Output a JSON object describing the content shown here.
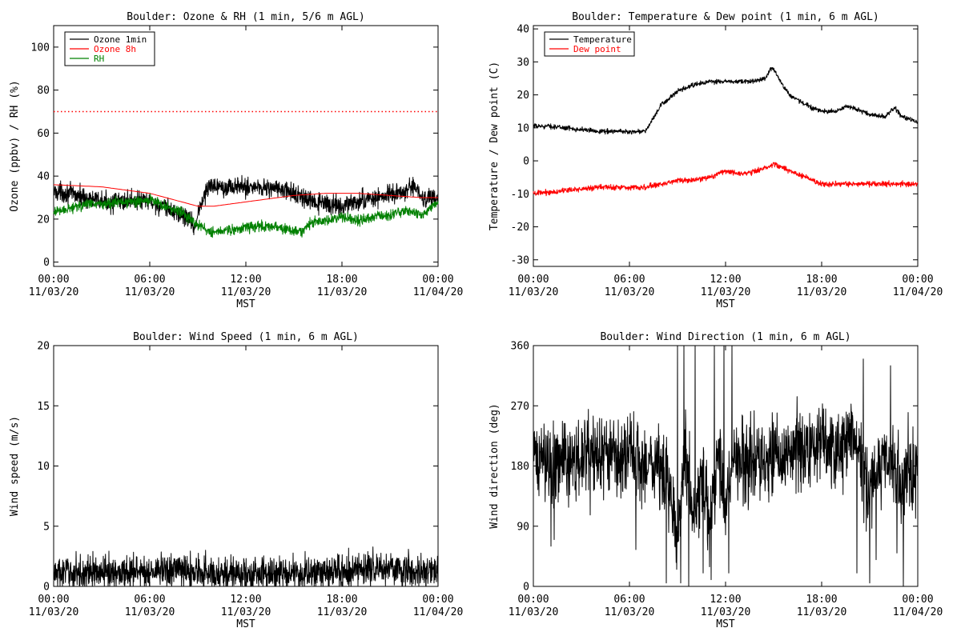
{
  "chart_data": [
    {
      "type": "line",
      "title": "Boulder: Ozone & RH (1 min, 5/6 m AGL)",
      "xlabel": "MST",
      "ylabel": "Ozone (ppbv) / RH (%)",
      "xticks": [
        {
          "time": "00:00",
          "date": "11/03/20"
        },
        {
          "time": "06:00",
          "date": "11/03/20"
        },
        {
          "time": "12:00",
          "date": "11/03/20"
        },
        {
          "time": "18:00",
          "date": "11/03/20"
        },
        {
          "time": "00:00",
          "date": "11/04/20"
        }
      ],
      "xlim": [
        0,
        24
      ],
      "ylim": [
        -2,
        110
      ],
      "yticks": [
        0,
        20,
        40,
        60,
        80,
        100
      ],
      "legend": {
        "placement": "top-left"
      },
      "reference_lines": [
        {
          "y": 70,
          "color": "#ff0000",
          "style": "dotted"
        }
      ],
      "series": [
        {
          "name": "Ozone 1min",
          "color": "#000000",
          "noise": 2.2,
          "x": [
            0,
            1,
            2,
            3,
            4,
            5,
            6,
            7,
            8,
            8.5,
            8.8,
            9,
            9.3,
            9.6,
            10,
            11,
            12,
            13,
            14,
            15,
            15.5,
            16,
            17,
            18,
            19,
            20,
            21,
            22,
            22.5,
            23,
            24
          ],
          "y": [
            33,
            32,
            30,
            28,
            28,
            29,
            28,
            25,
            22,
            20,
            16,
            22,
            29,
            34,
            36,
            35,
            35,
            35,
            34,
            32,
            30,
            28,
            27,
            26,
            28,
            30,
            31,
            33,
            35,
            30,
            29
          ]
        },
        {
          "name": "Ozone 8h",
          "color": "#ff0000",
          "noise": 0,
          "x": [
            0,
            3,
            6,
            8,
            9,
            10,
            12,
            15,
            17,
            19,
            21,
            23,
            24
          ],
          "y": [
            36,
            35,
            32,
            28,
            26,
            26,
            28,
            31,
            32,
            32,
            31,
            30,
            30
          ]
        },
        {
          "name": "RH",
          "color": "#008000",
          "noise": 1.2,
          "x": [
            0,
            1,
            2,
            3,
            4,
            5,
            6,
            7,
            8,
            8.5,
            9,
            9.5,
            10,
            11,
            12,
            13,
            14,
            15,
            15.5,
            16,
            17,
            18,
            19,
            20,
            21,
            22,
            23,
            24
          ],
          "y": [
            23,
            25,
            27,
            27,
            28,
            28,
            29,
            26,
            23,
            20,
            17,
            15,
            14,
            15,
            16,
            17,
            16,
            15,
            14,
            18,
            20,
            21,
            19,
            21,
            22,
            24,
            22,
            28
          ]
        }
      ]
    },
    {
      "type": "line",
      "title": "Boulder: Temperature & Dew point (1 min, 6 m AGL)",
      "xlabel": "MST",
      "ylabel": "Temperature / Dew point (C)",
      "xticks": [
        {
          "time": "00:00",
          "date": "11/03/20"
        },
        {
          "time": "06:00",
          "date": "11/03/20"
        },
        {
          "time": "12:00",
          "date": "11/03/20"
        },
        {
          "time": "18:00",
          "date": "11/03/20"
        },
        {
          "time": "00:00",
          "date": "11/04/20"
        }
      ],
      "xlim": [
        0,
        24
      ],
      "ylim": [
        -32,
        41
      ],
      "yticks": [
        -30,
        -20,
        -10,
        0,
        10,
        20,
        30,
        40
      ],
      "legend": {
        "placement": "top-left"
      },
      "series": [
        {
          "name": "Temperature",
          "color": "#000000",
          "noise": 0.35,
          "x": [
            0,
            1,
            2,
            3,
            4,
            5,
            6,
            7,
            7.5,
            8,
            9,
            10,
            11,
            12,
            13,
            13.5,
            14,
            14.5,
            14.8,
            15,
            15.3,
            16,
            17,
            18,
            19,
            19.5,
            20,
            21,
            22,
            22.3,
            22.6,
            23,
            23.5,
            24
          ],
          "y": [
            10.5,
            10.5,
            10,
            9.5,
            9,
            9,
            8.8,
            9,
            13,
            17,
            21,
            23,
            24,
            24,
            24,
            24,
            24.5,
            25,
            28,
            28,
            25,
            20,
            17,
            15,
            15,
            16.5,
            16,
            14,
            13.5,
            15,
            16,
            13.5,
            12.5,
            11.5
          ]
        },
        {
          "name": "Dew point",
          "color": "#ff0000",
          "noise": 0.4,
          "x": [
            0,
            1,
            2,
            3,
            4,
            5,
            6,
            7,
            8,
            9,
            10,
            11,
            12,
            13,
            14,
            15,
            16,
            17,
            18,
            19,
            20,
            21,
            22,
            23,
            24
          ],
          "y": [
            -10,
            -9.5,
            -9,
            -8.5,
            -8,
            -8,
            -8,
            -8,
            -7,
            -6,
            -6,
            -5,
            -3,
            -4,
            -3,
            -1,
            -3,
            -5,
            -7,
            -7,
            -7,
            -7,
            -7,
            -7,
            -7
          ]
        }
      ]
    },
    {
      "type": "line",
      "title": "Boulder: Wind Speed (1 min, 6 m AGL)",
      "xlabel": "MST",
      "ylabel": "Wind speed (m/s)",
      "xticks": [
        {
          "time": "00:00",
          "date": "11/03/20"
        },
        {
          "time": "06:00",
          "date": "11/03/20"
        },
        {
          "time": "12:00",
          "date": "11/03/20"
        },
        {
          "time": "18:00",
          "date": "11/03/20"
        },
        {
          "time": "00:00",
          "date": "11/04/20"
        }
      ],
      "xlim": [
        0,
        24
      ],
      "ylim": [
        0,
        20
      ],
      "yticks": [
        0,
        5,
        10,
        15,
        20
      ],
      "series": [
        {
          "color": "#000000",
          "noise": 0.7,
          "x": [
            0,
            2,
            4,
            6,
            8,
            10,
            12,
            14,
            16,
            18,
            20,
            21,
            22,
            24
          ],
          "y": [
            1.1,
            1.1,
            1.2,
            1.2,
            1.3,
            1.1,
            1,
            1,
            1.1,
            1.2,
            1.5,
            1.6,
            1.2,
            1.1
          ]
        }
      ]
    },
    {
      "type": "line",
      "title": "Boulder: Wind Direction (1 min, 6 m AGL)",
      "xlabel": "MST",
      "ylabel": "Wind direction (deg)",
      "xticks": [
        {
          "time": "00:00",
          "date": "11/03/20"
        },
        {
          "time": "06:00",
          "date": "11/03/20"
        },
        {
          "time": "12:00",
          "date": "11/03/20"
        },
        {
          "time": "18:00",
          "date": "11/03/20"
        },
        {
          "time": "00:00",
          "date": "11/04/20"
        }
      ],
      "xlim": [
        0,
        24
      ],
      "ylim": [
        0,
        360
      ],
      "yticks": [
        0,
        90,
        180,
        270,
        360
      ],
      "series": [
        {
          "color": "#000000",
          "noise": 30,
          "x": [
            0,
            2,
            4,
            6,
            8,
            8.5,
            9,
            9.5,
            10,
            10.5,
            11,
            11.5,
            12,
            12.5,
            13,
            14,
            15,
            16,
            17,
            18,
            19,
            20,
            21,
            22,
            23,
            24
          ],
          "y": [
            190,
            185,
            195,
            190,
            180,
            140,
            90,
            200,
            100,
            170,
            80,
            200,
            120,
            200,
            190,
            185,
            195,
            200,
            205,
            210,
            205,
            220,
            150,
            200,
            160,
            185
          ],
          "spikes": [
            {
              "x": 1.1,
              "y": 60
            },
            {
              "x": 1.3,
              "y": 70
            },
            {
              "x": 6.4,
              "y": 55
            },
            {
              "x": 8.3,
              "y": 5
            },
            {
              "x": 9,
              "y": 360
            },
            {
              "x": 9.2,
              "y": 5
            },
            {
              "x": 9.4,
              "y": 360
            },
            {
              "x": 9.7,
              "y": 0
            },
            {
              "x": 10.1,
              "y": 360
            },
            {
              "x": 10.6,
              "y": 20
            },
            {
              "x": 11.1,
              "y": 10
            },
            {
              "x": 11.3,
              "y": 360
            },
            {
              "x": 11.9,
              "y": 360
            },
            {
              "x": 12.4,
              "y": 360
            },
            {
              "x": 12.2,
              "y": 20
            },
            {
              "x": 13.1,
              "y": 120
            },
            {
              "x": 20.2,
              "y": 20
            },
            {
              "x": 20.6,
              "y": 340
            },
            {
              "x": 21,
              "y": 5
            },
            {
              "x": 21.4,
              "y": 40
            },
            {
              "x": 22.3,
              "y": 330
            },
            {
              "x": 22.7,
              "y": 50
            },
            {
              "x": 23.1,
              "y": 0
            },
            {
              "x": 23.4,
              "y": 260
            }
          ]
        }
      ]
    }
  ]
}
